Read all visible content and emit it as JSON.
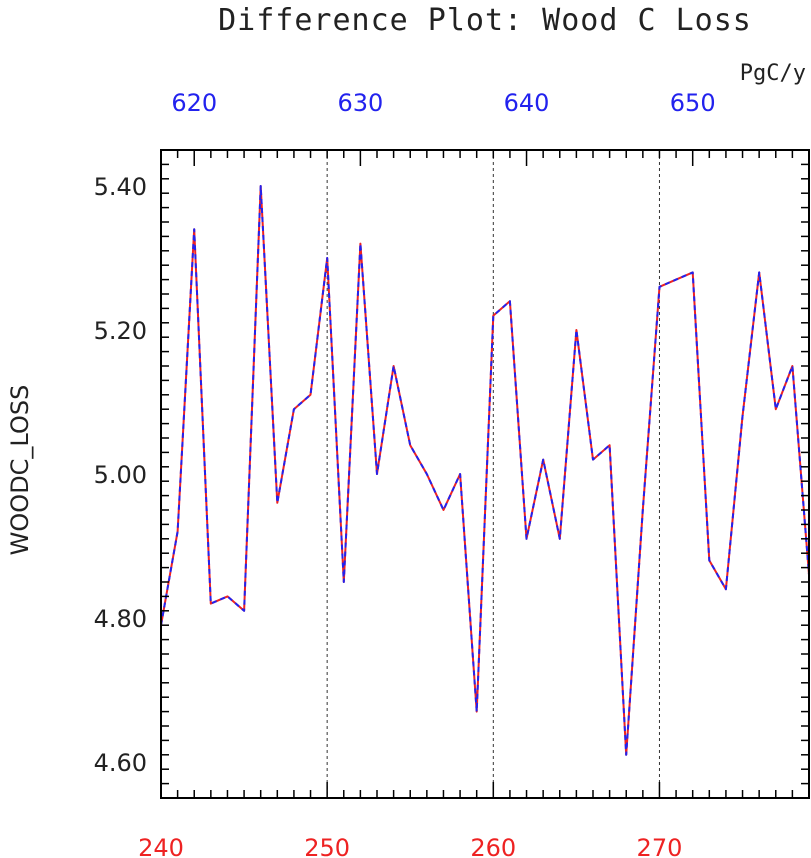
{
  "chart_data": {
    "type": "line",
    "title": "Difference Plot: Wood C Loss",
    "units": "PgC/y",
    "ylabel": "WOODC_LOSS",
    "ylim": [
      4.55,
      5.45
    ],
    "yticks": [
      4.6,
      4.8,
      5.0,
      5.2,
      5.4
    ],
    "ytick_labels": [
      "4.60",
      "4.80",
      "5.00",
      "5.20",
      "5.40"
    ],
    "x_bottom": {
      "range": [
        240,
        279
      ],
      "ticks": [
        240,
        250,
        260,
        270
      ],
      "labels": [
        "240",
        "250",
        "260",
        "270"
      ],
      "color": "#ee2222"
    },
    "x_top": {
      "range": [
        618,
        657
      ],
      "ticks": [
        620,
        630,
        640,
        650
      ],
      "labels": [
        "620",
        "630",
        "640",
        "650"
      ],
      "color": "#2222ee"
    },
    "grid": "vertical-dashed",
    "series": [
      {
        "color": "#ee2222",
        "style": "solid",
        "x": [
          240,
          241,
          242,
          243,
          244,
          245,
          246,
          247,
          248,
          249,
          250,
          251,
          252,
          253,
          254,
          255,
          256,
          257,
          258,
          259,
          260,
          261,
          262,
          263,
          264,
          265,
          266,
          267,
          268,
          269,
          270,
          271,
          272,
          273,
          274,
          275,
          276,
          277,
          278,
          279
        ],
        "values": [
          4.79,
          4.92,
          5.34,
          4.82,
          4.83,
          4.81,
          5.4,
          4.96,
          5.09,
          5.11,
          5.3,
          4.85,
          5.32,
          5.0,
          5.15,
          5.04,
          5.0,
          4.95,
          5.0,
          4.67,
          5.22,
          5.24,
          4.91,
          5.02,
          4.91,
          5.2,
          5.02,
          5.04,
          4.61,
          4.95,
          5.26,
          5.27,
          5.28,
          4.88,
          4.84,
          5.08,
          5.28,
          5.09,
          5.15,
          4.86
        ]
      },
      {
        "color": "#2222ee",
        "style": "dashed",
        "x": [
          240,
          241,
          242,
          243,
          244,
          245,
          246,
          247,
          248,
          249,
          250,
          251,
          252,
          253,
          254,
          255,
          256,
          257,
          258,
          259,
          260,
          261,
          262,
          263,
          264,
          265,
          266,
          267,
          268,
          269,
          270,
          271,
          272,
          273,
          274,
          275,
          276,
          277,
          278,
          279
        ],
        "values": [
          4.79,
          4.92,
          5.34,
          4.82,
          4.83,
          4.81,
          5.4,
          4.96,
          5.09,
          5.11,
          5.3,
          4.85,
          5.32,
          5.0,
          5.15,
          5.04,
          5.0,
          4.95,
          5.0,
          4.67,
          5.22,
          5.24,
          4.91,
          5.02,
          4.91,
          5.2,
          5.02,
          5.04,
          4.61,
          4.95,
          5.26,
          5.27,
          5.28,
          4.88,
          4.84,
          5.08,
          5.28,
          5.09,
          5.15,
          4.86
        ]
      }
    ]
  }
}
